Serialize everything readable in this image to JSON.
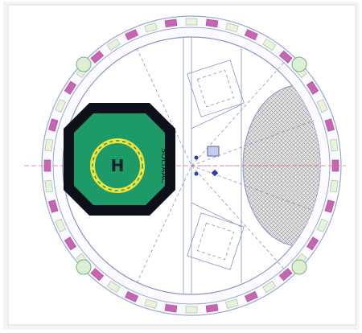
{
  "drawing": {
    "deck_marking": "H",
    "side_text": "SOLTAAC"
  }
}
